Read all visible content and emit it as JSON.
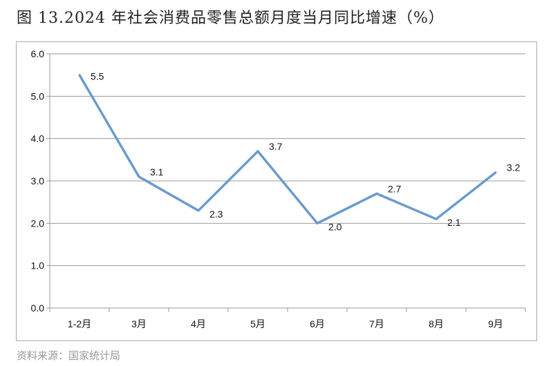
{
  "title": "图 13.2024 年社会消费品零售总额月度当月同比增速（%）",
  "source": "资料来源：国家统计局",
  "chart_data": {
    "type": "line",
    "categories": [
      "1-2月",
      "3月",
      "4月",
      "5月",
      "6月",
      "7月",
      "8月",
      "9月"
    ],
    "series": [
      {
        "values": [
          5.5,
          3.1,
          2.3,
          3.7,
          2.0,
          2.7,
          2.1,
          3.2
        ],
        "color": "#6a9bcb"
      }
    ],
    "data_labels": [
      "5.5",
      "3.1",
      "2.3",
      "3.7",
      "2.0",
      "2.7",
      "2.1",
      "3.2"
    ],
    "yticks": [
      "0.0",
      "1.0",
      "2.0",
      "3.0",
      "4.0",
      "5.0",
      "6.0"
    ],
    "ylim": [
      0,
      6
    ],
    "grid": true
  }
}
